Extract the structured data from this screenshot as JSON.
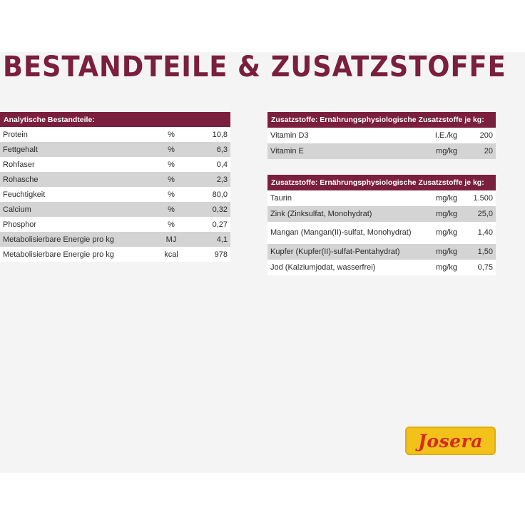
{
  "title": "BESTANDTEILE & ZUSATZSTOFFE",
  "analytical": {
    "header": "Analytische Bestandteile:",
    "rows": [
      {
        "name": "Protein",
        "unit": "%",
        "value": "10,8"
      },
      {
        "name": "Fettgehalt",
        "unit": "%",
        "value": "6,3"
      },
      {
        "name": "Rohfaser",
        "unit": "%",
        "value": "0,4"
      },
      {
        "name": "Rohasche",
        "unit": "%",
        "value": "2,3"
      },
      {
        "name": "Feuchtigkeit",
        "unit": "%",
        "value": "80,0"
      },
      {
        "name": "Calcium",
        "unit": "%",
        "value": "0,32"
      },
      {
        "name": "Phosphor",
        "unit": "%",
        "value": "0,27"
      },
      {
        "name": "Metabolisierbare Energie pro kg",
        "unit": "MJ",
        "value": "4,1"
      },
      {
        "name": "Metabolisierbare Energie pro kg",
        "unit": "kcal",
        "value": "978"
      }
    ]
  },
  "additives_vitamins": {
    "header": "Zusatzstoffe: Ernährungsphysiologische Zusatzstoffe je kg:",
    "rows": [
      {
        "name": "Vitamin D3",
        "unit": "I.E./kg",
        "value": "200"
      },
      {
        "name": "Vitamin E",
        "unit": "mg/kg",
        "value": "20"
      }
    ]
  },
  "additives_trace": {
    "header": "Zusatzstoffe: Ernährungsphysiologische Zusatzstoffe je kg:",
    "rows": [
      {
        "name": "Taurin",
        "unit": "mg/kg",
        "value": "1.500"
      },
      {
        "name": "Zink (Zinksulfat, Monohydrat)",
        "unit": "mg/kg",
        "value": "25,0"
      },
      {
        "name": "Mangan (Mangan(II)-sulfat, Monohydrat)",
        "unit": "mg/kg",
        "value": "1,40"
      },
      {
        "name": "Kupfer (Kupfer(II)-sulfat-Pentahydrat)",
        "unit": "mg/kg",
        "value": "1,50"
      },
      {
        "name": "Jod (Kalziumjodat, wasserfrei)",
        "unit": "mg/kg",
        "value": "0,75"
      }
    ]
  },
  "brand": "Josera",
  "colors": {
    "accent": "#7a1f3d",
    "row_alt": "#d4d4d4",
    "logo_bg": "#f2c21b",
    "logo_text": "#d62a22"
  }
}
